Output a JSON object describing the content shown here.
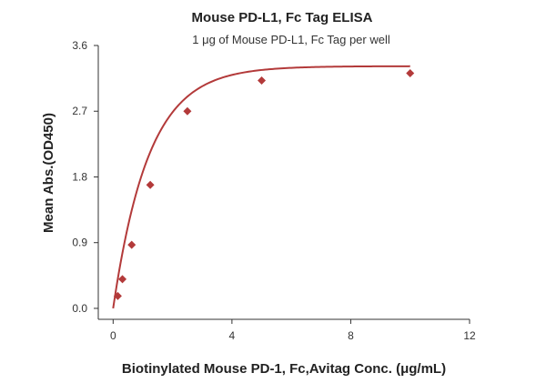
{
  "chart_data": {
    "type": "scatter",
    "title": "Mouse PD-L1, Fc Tag ELISA",
    "subtitle": "1 μg of Mouse PD-L1, Fc Tag per well",
    "xlabel": "Biotinylated Mouse PD-1, Fc,Avitag Conc. (μg/mL)",
    "ylabel": "Mean Abs.(OD450)",
    "xlim": [
      -0.5,
      12
    ],
    "ylim": [
      -0.15,
      3.6
    ],
    "xticks": [
      0,
      4,
      8,
      12
    ],
    "xtick_labels": [
      "0",
      "4",
      "8",
      "12"
    ],
    "yticks": [
      0.0,
      0.9,
      1.8,
      2.7,
      3.6
    ],
    "ytick_labels": [
      "0.0",
      "0.9",
      "1.8",
      "2.7",
      "3.6"
    ],
    "grid": false,
    "color": "#b33a3a",
    "series": [
      {
        "x": [
          0.156,
          0.313,
          0.625,
          1.25,
          2.5,
          5,
          10
        ],
        "y": [
          0.17,
          0.4,
          0.87,
          1.69,
          2.7,
          3.12,
          3.22
        ],
        "fit": "curve"
      }
    ]
  }
}
